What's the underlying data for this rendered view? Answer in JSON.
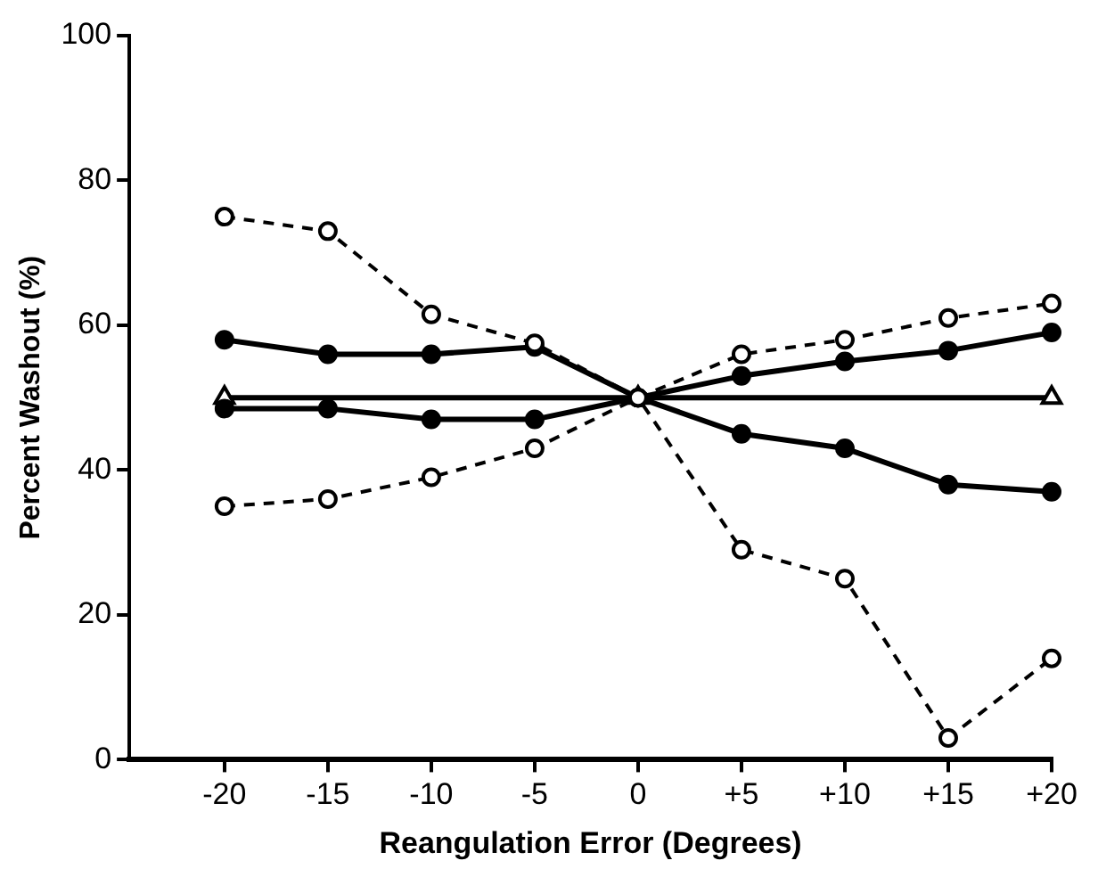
{
  "chart_data": {
    "type": "line",
    "xlabel": "Reangulation Error (Degrees)",
    "ylabel": "Percent Washout (%)",
    "x": [
      -20,
      -15,
      -10,
      -5,
      0,
      5,
      10,
      15,
      20
    ],
    "xlim": [
      -24.6,
      20
    ],
    "xticks": [
      -20,
      -15,
      -10,
      -5,
      0,
      {
        "value": 5,
        "label": "+5"
      },
      {
        "value": 10,
        "label": "+10"
      },
      {
        "value": 15,
        "label": "+15"
      },
      {
        "value": 20,
        "label": "+20"
      }
    ],
    "ylim": [
      0,
      100
    ],
    "yticks": [
      0,
      20,
      40,
      60,
      80,
      100
    ],
    "grid": false,
    "legend": false,
    "series": [
      {
        "color": "#000000",
        "line_style": "dashed",
        "marker": "circle",
        "values": [
          75,
          73,
          61.5,
          57.5,
          50,
          29,
          25,
          3,
          14
        ]
      },
      {
        "color": "#000000",
        "line_style": "dashed",
        "marker": "circle",
        "values": [
          35,
          36,
          39,
          43,
          50,
          56,
          58,
          61,
          63
        ]
      },
      {
        "color": "#000000",
        "line_style": "solid",
        "marker": "circle",
        "values": [
          58,
          56,
          56,
          57,
          50,
          45,
          43,
          38,
          37
        ]
      },
      {
        "color": "#000000",
        "line_style": "solid",
        "marker": "circle",
        "values": [
          48.5,
          48.5,
          47,
          47,
          50,
          53,
          55,
          56.5,
          59
        ]
      },
      {
        "color": "#000000",
        "line_style": "solid",
        "marker": "triangle",
        "x": [
          -20,
          0,
          20
        ],
        "values": [
          50,
          50,
          50
        ]
      }
    ]
  }
}
